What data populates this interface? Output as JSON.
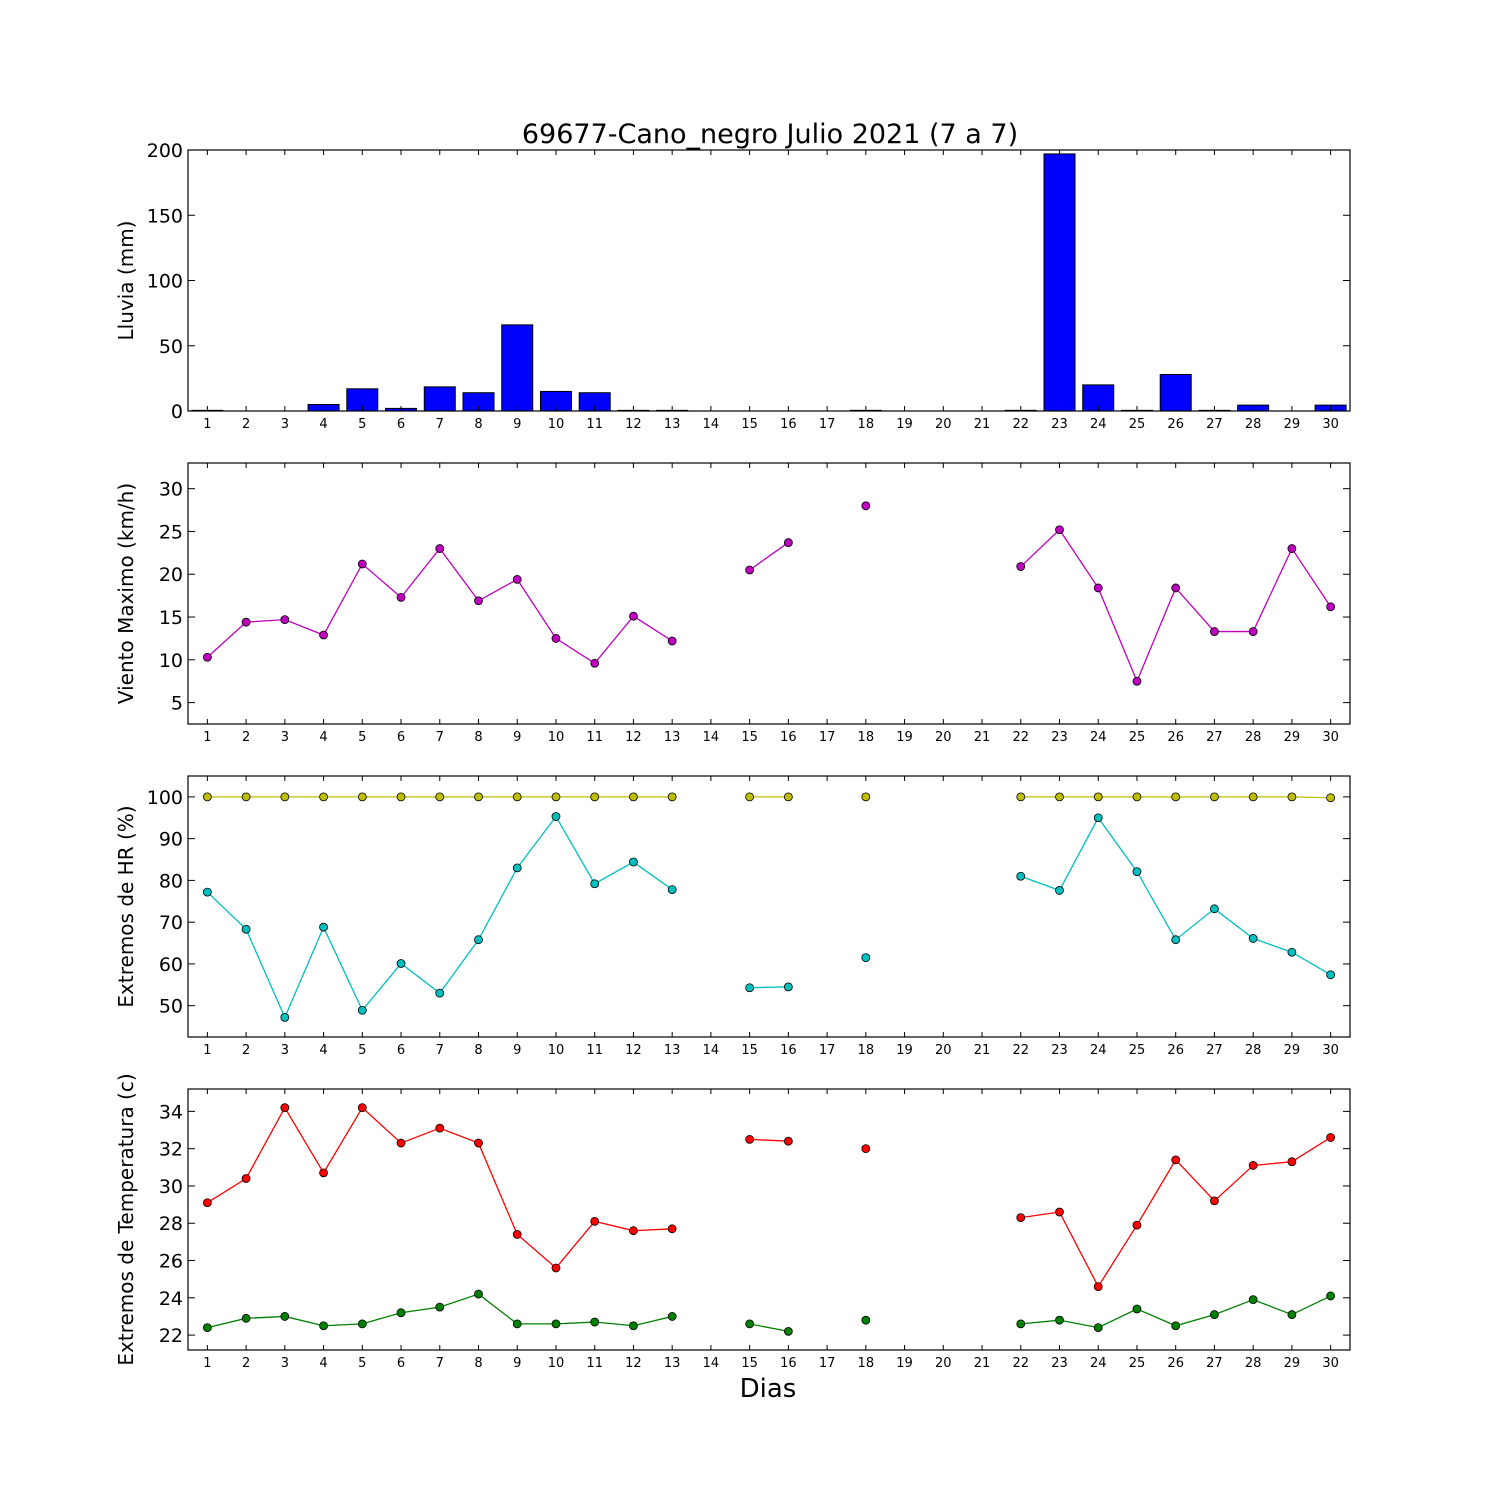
{
  "chart_data": {
    "title": "69677-Cano_negro Julio 2021  (7 a 7)",
    "xlabel": "Dias",
    "days": [
      1,
      2,
      3,
      4,
      5,
      6,
      7,
      8,
      9,
      10,
      11,
      12,
      13,
      14,
      15,
      16,
      17,
      18,
      19,
      20,
      21,
      22,
      23,
      24,
      25,
      26,
      27,
      28,
      29,
      30
    ],
    "panels": [
      {
        "id": "rain",
        "type": "bar",
        "ylabel": "Lluvia (mm)",
        "ylim": [
          0,
          200
        ],
        "yticks": [
          0,
          50,
          100,
          150,
          200
        ],
        "series": [
          {
            "color": "#0000ff",
            "values": [
              0.5,
              0,
              0,
              5,
              17,
              2,
              18.5,
              14,
              66,
              15,
              14,
              0.5,
              0.5,
              0,
              0,
              0,
              0,
              0.5,
              0,
              0,
              0,
              0.5,
              197,
              20,
              0.5,
              28,
              0.5,
              4.5,
              0,
              4.5
            ]
          }
        ]
      },
      {
        "id": "wind",
        "type": "line",
        "ylabel": "Viento Maximo (km/h)",
        "ylim": [
          2.5,
          33
        ],
        "yticks": [
          5,
          10,
          15,
          20,
          25,
          30
        ],
        "series": [
          {
            "color": "#bf00bf",
            "values": [
              10.3,
              14.4,
              14.7,
              12.9,
              21.2,
              17.3,
              23.0,
              16.9,
              19.4,
              12.5,
              9.6,
              15.1,
              12.2,
              null,
              20.5,
              23.7,
              null,
              28.0,
              null,
              null,
              null,
              20.9,
              25.2,
              18.4,
              7.5,
              18.4,
              13.3,
              13.3,
              23.0,
              16.2
            ]
          }
        ]
      },
      {
        "id": "humidity",
        "type": "line",
        "ylabel": "Extremos de HR (%)",
        "ylim": [
          42.5,
          105
        ],
        "yticks": [
          50,
          60,
          70,
          80,
          90,
          100
        ],
        "series": [
          {
            "color": "#bfbf00",
            "values": [
              100,
              100,
              100,
              100,
              100,
              100,
              100,
              100,
              100,
              100,
              100,
              100,
              100,
              null,
              100,
              100,
              null,
              100,
              null,
              null,
              null,
              100,
              100,
              100,
              100,
              100,
              100,
              100,
              100,
              99.8
            ]
          },
          {
            "color": "#00bfbf",
            "values": [
              77.2,
              68.3,
              47.2,
              68.8,
              48.9,
              60.1,
              53.0,
              65.8,
              83.0,
              95.3,
              79.2,
              84.4,
              77.8,
              null,
              54.3,
              54.5,
              null,
              61.5,
              null,
              null,
              null,
              81.0,
              77.6,
              95.0,
              82.1,
              65.8,
              73.2,
              66.1,
              62.8,
              57.4
            ]
          }
        ]
      },
      {
        "id": "temperature",
        "type": "line",
        "ylabel": "Extremos de Temperatura (c)",
        "ylim": [
          21.2,
          35.2
        ],
        "yticks": [
          22,
          24,
          26,
          28,
          30,
          32,
          34
        ],
        "series": [
          {
            "color": "#ff0000",
            "values": [
              29.1,
              30.4,
              34.2,
              30.7,
              34.2,
              32.3,
              33.1,
              32.3,
              27.4,
              25.6,
              28.1,
              27.6,
              27.7,
              null,
              32.5,
              32.4,
              null,
              32.0,
              null,
              null,
              null,
              28.3,
              28.6,
              24.6,
              27.9,
              31.4,
              29.2,
              31.1,
              31.3,
              32.6
            ]
          },
          {
            "color": "#008000",
            "values": [
              22.4,
              22.9,
              23.0,
              22.5,
              22.6,
              23.2,
              23.5,
              24.2,
              22.6,
              22.6,
              22.7,
              22.5,
              23.0,
              null,
              22.6,
              22.2,
              null,
              22.8,
              null,
              null,
              null,
              22.6,
              22.8,
              22.4,
              23.4,
              22.5,
              23.1,
              23.9,
              23.1,
              24.1
            ]
          }
        ]
      }
    ]
  }
}
